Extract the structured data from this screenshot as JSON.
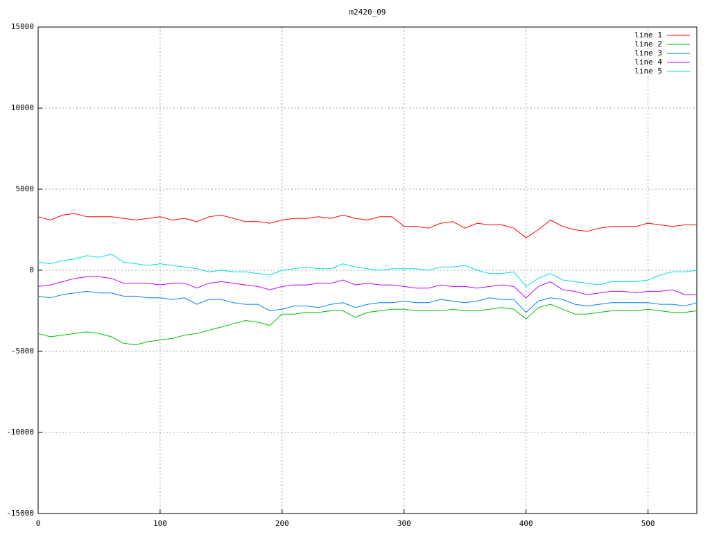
{
  "chart_data": {
    "type": "line",
    "title": "m2420_09",
    "x": [
      0,
      10,
      20,
      30,
      40,
      50,
      60,
      70,
      80,
      90,
      100,
      110,
      120,
      130,
      140,
      150,
      160,
      170,
      180,
      190,
      200,
      210,
      220,
      230,
      240,
      250,
      260,
      270,
      280,
      290,
      300,
      310,
      320,
      330,
      340,
      350,
      360,
      370,
      380,
      390,
      400,
      410,
      420,
      430,
      440,
      450,
      460,
      470,
      480,
      490,
      500,
      510,
      520,
      530,
      540
    ],
    "series": [
      {
        "name": "line 1",
        "color": "#ff0000",
        "values": [
          3300,
          3100,
          3400,
          3500,
          3300,
          3300,
          3300,
          3200,
          3100,
          3200,
          3300,
          3100,
          3200,
          3000,
          3300,
          3400,
          3200,
          3000,
          3000,
          2900,
          3100,
          3200,
          3200,
          3300,
          3200,
          3400,
          3200,
          3100,
          3300,
          3300,
          2700,
          2700,
          2600,
          2900,
          3000,
          2600,
          2900,
          2800,
          2800,
          2600,
          2000,
          2500,
          3100,
          2700,
          2500,
          2400,
          2600,
          2700,
          2700,
          2700,
          2900,
          2800,
          2700,
          2800,
          2800
        ]
      },
      {
        "name": "line 2",
        "color": "#00c000",
        "values": [
          -3900,
          -4100,
          -4000,
          -3900,
          -3800,
          -3900,
          -4100,
          -4500,
          -4600,
          -4400,
          -4300,
          -4200,
          -4000,
          -3900,
          -3700,
          -3500,
          -3300,
          -3100,
          -3200,
          -3400,
          -2700,
          -2700,
          -2600,
          -2600,
          -2500,
          -2500,
          -2900,
          -2600,
          -2500,
          -2400,
          -2400,
          -2500,
          -2500,
          -2500,
          -2400,
          -2500,
          -2500,
          -2400,
          -2300,
          -2400,
          -3000,
          -2300,
          -2100,
          -2400,
          -2700,
          -2700,
          -2600,
          -2500,
          -2500,
          -2500,
          -2400,
          -2500,
          -2600,
          -2600,
          -2500
        ]
      },
      {
        "name": "line 3",
        "color": "#0080ff",
        "values": [
          -1600,
          -1700,
          -1500,
          -1400,
          -1300,
          -1400,
          -1400,
          -1600,
          -1600,
          -1700,
          -1700,
          -1800,
          -1700,
          -2100,
          -1800,
          -1800,
          -2000,
          -2100,
          -2100,
          -2500,
          -2400,
          -2200,
          -2200,
          -2300,
          -2100,
          -2000,
          -2300,
          -2100,
          -2000,
          -2000,
          -1900,
          -2000,
          -2000,
          -1800,
          -1900,
          -2000,
          -1900,
          -1700,
          -1800,
          -1800,
          -2600,
          -1900,
          -1700,
          -1800,
          -2100,
          -2200,
          -2100,
          -2000,
          -2000,
          -2000,
          -2000,
          -2100,
          -2100,
          -2200,
          -2000
        ]
      },
      {
        "name": "line 4",
        "color": "#c000ff",
        "values": [
          -1000,
          -900,
          -700,
          -500,
          -400,
          -400,
          -500,
          -800,
          -800,
          -800,
          -900,
          -800,
          -800,
          -1100,
          -800,
          -700,
          -800,
          -900,
          -1000,
          -1200,
          -1000,
          -900,
          -900,
          -800,
          -800,
          -600,
          -900,
          -800,
          -900,
          -900,
          -1000,
          -1100,
          -1100,
          -900,
          -1000,
          -1000,
          -1100,
          -1000,
          -900,
          -1000,
          -1700,
          -1000,
          -700,
          -1200,
          -1300,
          -1500,
          -1400,
          -1300,
          -1300,
          -1400,
          -1300,
          -1300,
          -1200,
          -1500,
          -1500
        ]
      },
      {
        "name": "line 5",
        "color": "#00dddd",
        "values": [
          500,
          400,
          600,
          700,
          900,
          800,
          1000,
          500,
          400,
          300,
          400,
          300,
          200,
          100,
          -100,
          0,
          -100,
          -100,
          -200,
          -300,
          0,
          100,
          200,
          100,
          100,
          400,
          200,
          100,
          0,
          100,
          100,
          100,
          0,
          200,
          200,
          300,
          0,
          -200,
          -200,
          -100,
          -1000,
          -500,
          -200,
          -600,
          -700,
          -800,
          -900,
          -700,
          -700,
          -700,
          -600,
          -300,
          -100,
          -100,
          0
        ]
      }
    ],
    "xlim": [
      0,
      540
    ],
    "xticks": [
      0,
      100,
      200,
      300,
      400,
      500
    ],
    "ylim": [
      -15000,
      15000
    ],
    "yticks": [
      -15000,
      -10000,
      -5000,
      0,
      5000,
      10000,
      15000
    ],
    "grid": true,
    "legend": "top-right"
  }
}
